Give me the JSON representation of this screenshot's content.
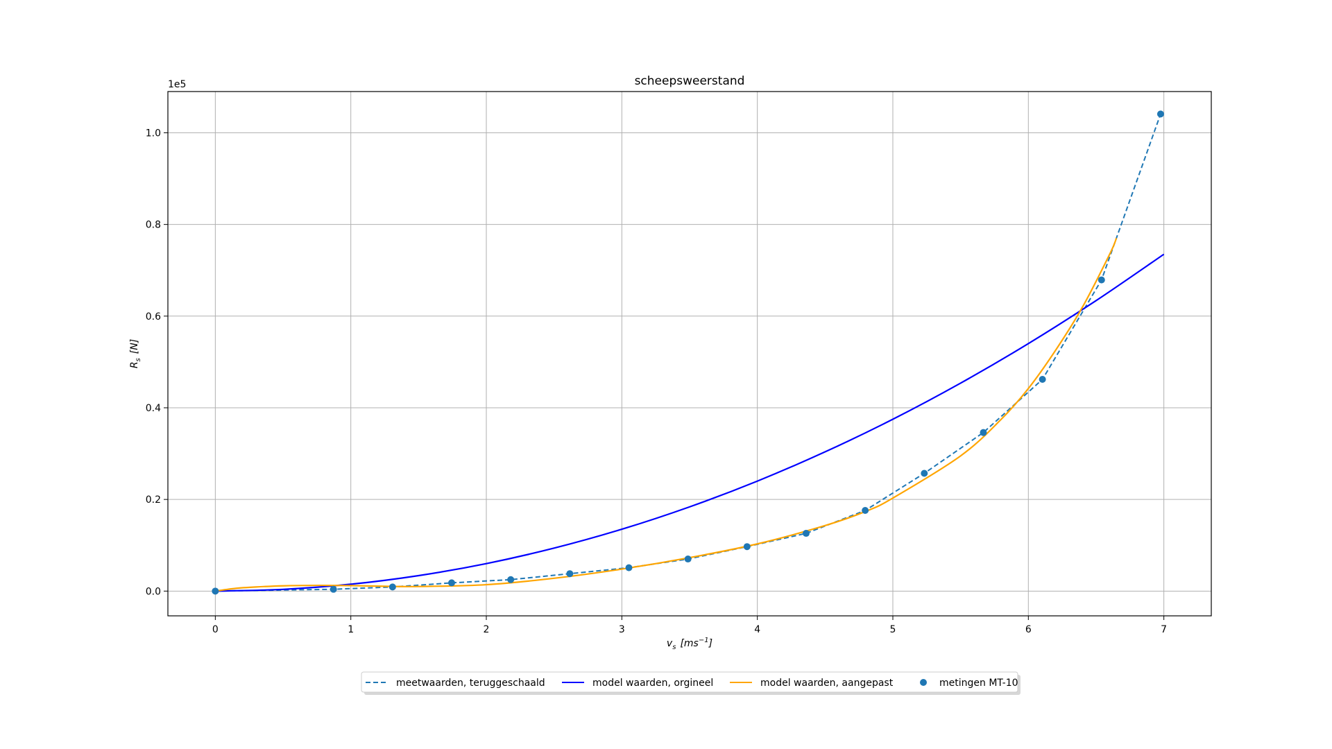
{
  "chart_data": {
    "type": "line",
    "title": "scheepsweerstand",
    "xlabel_var": "v",
    "xlabel_sub": "s",
    "xlabel_unit_base": "[ms",
    "xlabel_unit_exp": "−1",
    "xlabel_unit_close": "]",
    "ylabel_var": "R",
    "ylabel_sub": "s",
    "ylabel_unit": "[N]",
    "y_offset_text": "1e5",
    "xlim": [
      -0.35,
      7.35
    ],
    "ylim": [
      -5400,
      109000
    ],
    "y_scale_factor": 100000,
    "xticks": [
      0,
      1,
      2,
      3,
      4,
      5,
      6,
      7
    ],
    "xtick_labels": [
      "0",
      "1",
      "2",
      "3",
      "4",
      "5",
      "6",
      "7"
    ],
    "yticks": [
      0,
      20000,
      40000,
      60000,
      80000,
      100000
    ],
    "ytick_labels": [
      "0.0",
      "0.2",
      "0.4",
      "0.6",
      "0.8",
      "1.0"
    ],
    "grid": true,
    "legend_position": "bottom-center",
    "series": [
      {
        "name": "meetwaarden, teruggeschaald",
        "kind": "dashed-line",
        "color": "#1f77b4",
        "x": [
          0,
          0.872,
          1.308,
          1.744,
          2.18,
          2.616,
          3.052,
          3.488,
          3.924,
          4.36,
          4.796,
          5.232,
          5.668,
          6.104,
          6.54,
          6.976
        ],
        "y": [
          0,
          400,
          900,
          1800,
          2500,
          3800,
          5100,
          7000,
          9700,
          12600,
          17600,
          25700,
          34600,
          46200,
          67900,
          104100
        ]
      },
      {
        "name": "model waarden, orgineel",
        "kind": "solid-line",
        "color": "#0000ff",
        "x": [
          0,
          0.5,
          1,
          1.5,
          2,
          2.5,
          3,
          3.5,
          4,
          4.5,
          5,
          5.5,
          6,
          6.5,
          7
        ],
        "y": [
          0,
          380,
          1500,
          3380,
          6000,
          9380,
          13500,
          18380,
          24000,
          30380,
          37500,
          45380,
          54000,
          63380,
          73500
        ]
      },
      {
        "name": "model waarden, aangepast",
        "kind": "solid-line",
        "color": "#ffa500",
        "x": [
          0,
          0.15,
          0.3,
          0.5,
          0.75,
          1,
          1.25,
          1.5,
          2,
          2.5,
          3,
          3.5,
          4,
          4.5,
          4.8,
          5,
          5.5,
          5.8,
          6,
          6.2,
          6.4,
          6.6,
          6.65
        ],
        "y": [
          0,
          600,
          900,
          1150,
          1250,
          1200,
          1050,
          1000,
          1400,
          2800,
          4800,
          7300,
          10300,
          14300,
          17400,
          20300,
          29500,
          37500,
          44200,
          52500,
          62000,
          73500,
          77000
        ]
      },
      {
        "name": "metingen MT-10",
        "kind": "markers",
        "color": "#1f77b4",
        "x": [
          0,
          0.872,
          1.308,
          1.744,
          2.18,
          2.616,
          3.052,
          3.488,
          3.924,
          4.36,
          4.796,
          5.232,
          5.668,
          6.104,
          6.54,
          6.976
        ],
        "y": [
          0,
          400,
          900,
          1800,
          2500,
          3800,
          5100,
          7000,
          9700,
          12600,
          17600,
          25700,
          34600,
          46200,
          67900,
          104100
        ]
      }
    ]
  }
}
